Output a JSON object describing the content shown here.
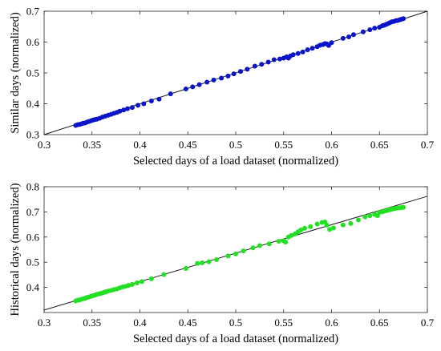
{
  "chart_data": [
    {
      "type": "scatter",
      "xlabel": "Selected days of a load dataset (normalized)",
      "ylabel": "Similar days (normalized)",
      "xlim": [
        0.3,
        0.7
      ],
      "ylim": [
        0.3,
        0.7
      ],
      "xticks": [
        "0.3",
        "0.35",
        "0.4",
        "0.45",
        "0.5",
        "0.55",
        "0.6",
        "0.65",
        "0.7"
      ],
      "yticks": [
        "0.3",
        "0.4",
        "0.5",
        "0.6",
        "0.7"
      ],
      "grid": false,
      "reference_line": {
        "from": [
          0.3,
          0.3
        ],
        "to": [
          0.7,
          0.7
        ]
      },
      "series": [
        {
          "color": "#0a14c8",
          "points": [
            [
              0.333,
              0.33
            ],
            [
              0.335,
              0.332
            ],
            [
              0.337,
              0.333
            ],
            [
              0.339,
              0.335
            ],
            [
              0.341,
              0.337
            ],
            [
              0.343,
              0.338
            ],
            [
              0.345,
              0.341
            ],
            [
              0.347,
              0.343
            ],
            [
              0.349,
              0.345
            ],
            [
              0.351,
              0.347
            ],
            [
              0.353,
              0.349
            ],
            [
              0.355,
              0.35
            ],
            [
              0.358,
              0.353
            ],
            [
              0.361,
              0.357
            ],
            [
              0.364,
              0.36
            ],
            [
              0.367,
              0.363
            ],
            [
              0.37,
              0.366
            ],
            [
              0.373,
              0.369
            ],
            [
              0.376,
              0.372
            ],
            [
              0.379,
              0.376
            ],
            [
              0.383,
              0.38
            ],
            [
              0.387,
              0.384
            ],
            [
              0.392,
              0.388
            ],
            [
              0.398,
              0.395
            ],
            [
              0.404,
              0.4
            ],
            [
              0.412,
              0.409
            ],
            [
              0.42,
              0.415
            ],
            [
              0.432,
              0.432
            ],
            [
              0.448,
              0.448
            ],
            [
              0.455,
              0.455
            ],
            [
              0.462,
              0.462
            ],
            [
              0.47,
              0.47
            ],
            [
              0.477,
              0.477
            ],
            [
              0.485,
              0.483
            ],
            [
              0.492,
              0.49
            ],
            [
              0.498,
              0.497
            ],
            [
              0.505,
              0.505
            ],
            [
              0.512,
              0.512
            ],
            [
              0.52,
              0.522
            ],
            [
              0.527,
              0.528
            ],
            [
              0.534,
              0.535
            ],
            [
              0.54,
              0.543
            ],
            [
              0.546,
              0.545
            ],
            [
              0.55,
              0.548
            ],
            [
              0.553,
              0.552
            ],
            [
              0.555,
              0.548
            ],
            [
              0.557,
              0.555
            ],
            [
              0.56,
              0.559
            ],
            [
              0.565,
              0.563
            ],
            [
              0.57,
              0.568
            ],
            [
              0.575,
              0.575
            ],
            [
              0.58,
              0.58
            ],
            [
              0.585,
              0.585
            ],
            [
              0.588,
              0.59
            ],
            [
              0.591,
              0.592
            ],
            [
              0.593,
              0.595
            ],
            [
              0.595,
              0.594
            ],
            [
              0.597,
              0.589
            ],
            [
              0.6,
              0.598
            ],
            [
              0.612,
              0.612
            ],
            [
              0.618,
              0.617
            ],
            [
              0.623,
              0.624
            ],
            [
              0.633,
              0.633
            ],
            [
              0.64,
              0.64
            ],
            [
              0.645,
              0.645
            ],
            [
              0.65,
              0.648
            ],
            [
              0.653,
              0.653
            ],
            [
              0.655,
              0.655
            ],
            [
              0.657,
              0.657
            ],
            [
              0.659,
              0.66
            ],
            [
              0.661,
              0.663
            ],
            [
              0.663,
              0.666
            ],
            [
              0.665,
              0.667
            ],
            [
              0.667,
              0.669
            ],
            [
              0.669,
              0.67
            ],
            [
              0.671,
              0.672
            ],
            [
              0.673,
              0.674
            ],
            [
              0.675,
              0.676
            ]
          ]
        }
      ]
    },
    {
      "type": "scatter",
      "xlabel": "Selected days of a load dataset (normalized)",
      "ylabel": "Historical days (normalized)",
      "xlim": [
        0.3,
        0.7
      ],
      "ylim": [
        0.3,
        0.8
      ],
      "xticks": [
        "0.3",
        "0.35",
        "0.4",
        "0.45",
        "0.5",
        "0.55",
        "0.6",
        "0.65",
        "0.7"
      ],
      "yticks": [
        "0.4",
        "0.5",
        "0.6",
        "0.7",
        "0.8"
      ],
      "grid": false,
      "reference_line": {
        "from": [
          0.3,
          0.31
        ],
        "to": [
          0.7,
          0.762
        ]
      },
      "series": [
        {
          "color": "#22e022",
          "points": [
            [
              0.333,
              0.346
            ],
            [
              0.335,
              0.349
            ],
            [
              0.337,
              0.35
            ],
            [
              0.339,
              0.353
            ],
            [
              0.341,
              0.355
            ],
            [
              0.343,
              0.357
            ],
            [
              0.345,
              0.36
            ],
            [
              0.347,
              0.362
            ],
            [
              0.349,
              0.365
            ],
            [
              0.351,
              0.367
            ],
            [
              0.353,
              0.369
            ],
            [
              0.355,
              0.372
            ],
            [
              0.357,
              0.374
            ],
            [
              0.359,
              0.376
            ],
            [
              0.361,
              0.378
            ],
            [
              0.363,
              0.381
            ],
            [
              0.365,
              0.383
            ],
            [
              0.367,
              0.385
            ],
            [
              0.37,
              0.388
            ],
            [
              0.373,
              0.391
            ],
            [
              0.376,
              0.394
            ],
            [
              0.379,
              0.398
            ],
            [
              0.382,
              0.402
            ],
            [
              0.385,
              0.404
            ],
            [
              0.388,
              0.408
            ],
            [
              0.392,
              0.412
            ],
            [
              0.397,
              0.418
            ],
            [
              0.402,
              0.423
            ],
            [
              0.412,
              0.434
            ],
            [
              0.425,
              0.451
            ],
            [
              0.448,
              0.475
            ],
            [
              0.46,
              0.495
            ],
            [
              0.465,
              0.498
            ],
            [
              0.472,
              0.502
            ],
            [
              0.48,
              0.51
            ],
            [
              0.492,
              0.525
            ],
            [
              0.5,
              0.533
            ],
            [
              0.508,
              0.545
            ],
            [
              0.518,
              0.557
            ],
            [
              0.525,
              0.566
            ],
            [
              0.535,
              0.573
            ],
            [
              0.545,
              0.583
            ],
            [
              0.55,
              0.585
            ],
            [
              0.552,
              0.58
            ],
            [
              0.555,
              0.6
            ],
            [
              0.558,
              0.606
            ],
            [
              0.562,
              0.613
            ],
            [
              0.565,
              0.621
            ],
            [
              0.568,
              0.628
            ],
            [
              0.572,
              0.635
            ],
            [
              0.578,
              0.641
            ],
            [
              0.585,
              0.652
            ],
            [
              0.59,
              0.658
            ],
            [
              0.593,
              0.66
            ],
            [
              0.595,
              0.647
            ],
            [
              0.598,
              0.63
            ],
            [
              0.602,
              0.636
            ],
            [
              0.612,
              0.648
            ],
            [
              0.62,
              0.654
            ],
            [
              0.628,
              0.668
            ],
            [
              0.635,
              0.68
            ],
            [
              0.64,
              0.685
            ],
            [
              0.645,
              0.69
            ],
            [
              0.648,
              0.685
            ],
            [
              0.65,
              0.698
            ],
            [
              0.653,
              0.7
            ],
            [
              0.655,
              0.703
            ],
            [
              0.657,
              0.705
            ],
            [
              0.659,
              0.707
            ],
            [
              0.661,
              0.709
            ],
            [
              0.663,
              0.711
            ],
            [
              0.665,
              0.713
            ],
            [
              0.667,
              0.714
            ],
            [
              0.669,
              0.715
            ],
            [
              0.671,
              0.716
            ],
            [
              0.673,
              0.717
            ],
            [
              0.675,
              0.718
            ]
          ]
        }
      ]
    }
  ]
}
